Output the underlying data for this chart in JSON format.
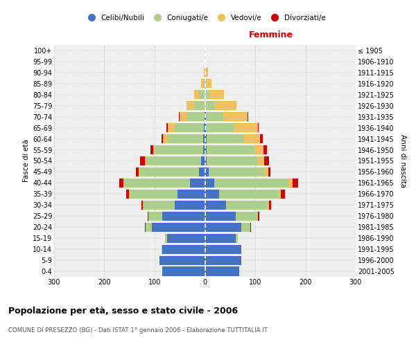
{
  "age_groups": [
    "0-4",
    "5-9",
    "10-14",
    "15-19",
    "20-24",
    "25-29",
    "30-34",
    "35-39",
    "40-44",
    "45-49",
    "50-54",
    "55-59",
    "60-64",
    "65-69",
    "70-74",
    "75-79",
    "80-84",
    "85-89",
    "90-94",
    "95-99",
    "100+"
  ],
  "birth_years": [
    "2001-2005",
    "1996-2000",
    "1991-1995",
    "1986-1990",
    "1981-1985",
    "1976-1980",
    "1971-1975",
    "1966-1970",
    "1961-1965",
    "1956-1960",
    "1951-1955",
    "1946-1950",
    "1941-1945",
    "1936-1940",
    "1931-1935",
    "1926-1930",
    "1921-1925",
    "1916-1920",
    "1911-1915",
    "1906-1910",
    "≤ 1905"
  ],
  "male_celibi": [
    85,
    90,
    85,
    75,
    105,
    85,
    60,
    55,
    30,
    12,
    8,
    4,
    3,
    2,
    1,
    0,
    0,
    0,
    0,
    0,
    0
  ],
  "male_coniugati": [
    0,
    0,
    1,
    4,
    13,
    28,
    62,
    95,
    130,
    118,
    108,
    95,
    72,
    58,
    35,
    22,
    12,
    4,
    1,
    0,
    0
  ],
  "male_vedovi": [
    0,
    0,
    0,
    0,
    0,
    0,
    1,
    1,
    2,
    2,
    3,
    4,
    8,
    14,
    15,
    14,
    10,
    3,
    1,
    0,
    0
  ],
  "male_divorziati": [
    0,
    0,
    0,
    0,
    1,
    1,
    3,
    5,
    8,
    5,
    10,
    5,
    3,
    2,
    1,
    0,
    0,
    0,
    0,
    0,
    0
  ],
  "female_nubili": [
    68,
    72,
    72,
    62,
    72,
    62,
    42,
    28,
    18,
    8,
    4,
    3,
    3,
    2,
    2,
    0,
    0,
    0,
    0,
    0,
    0
  ],
  "female_coniugate": [
    0,
    0,
    1,
    4,
    18,
    42,
    82,
    118,
    148,
    110,
    100,
    95,
    75,
    55,
    35,
    18,
    8,
    3,
    1,
    0,
    0
  ],
  "female_vedove": [
    0,
    0,
    0,
    0,
    1,
    2,
    3,
    5,
    8,
    8,
    14,
    18,
    32,
    48,
    48,
    45,
    30,
    10,
    5,
    1,
    0
  ],
  "female_divorziate": [
    0,
    0,
    0,
    0,
    1,
    2,
    5,
    8,
    12,
    5,
    10,
    8,
    5,
    2,
    1,
    0,
    0,
    0,
    0,
    0,
    0
  ],
  "colors": {
    "celibi_nubili": "#4472C4",
    "coniugati": "#AECF8A",
    "vedovi": "#F0C060",
    "divorziati": "#CC0000"
  },
  "title": "Popolazione per età, sesso e stato civile - 2006",
  "subtitle": "COMUNE DI PRESEZZO (BG) - Dati ISTAT 1° gennaio 2006 - Elaborazione TUTTITALIA.IT",
  "label_femmine": "Femmine",
  "ylabel_left": "Fasce di età",
  "ylabel_right": "Anni di nascita",
  "legend_labels": [
    "Celibi/Nubili",
    "Coniugati/e",
    "Vedovi/e",
    "Divorziati/e"
  ],
  "xlim": 300,
  "bg_color": "#ffffff",
  "plot_bg": "#efefef",
  "grid_color": "#cccccc"
}
